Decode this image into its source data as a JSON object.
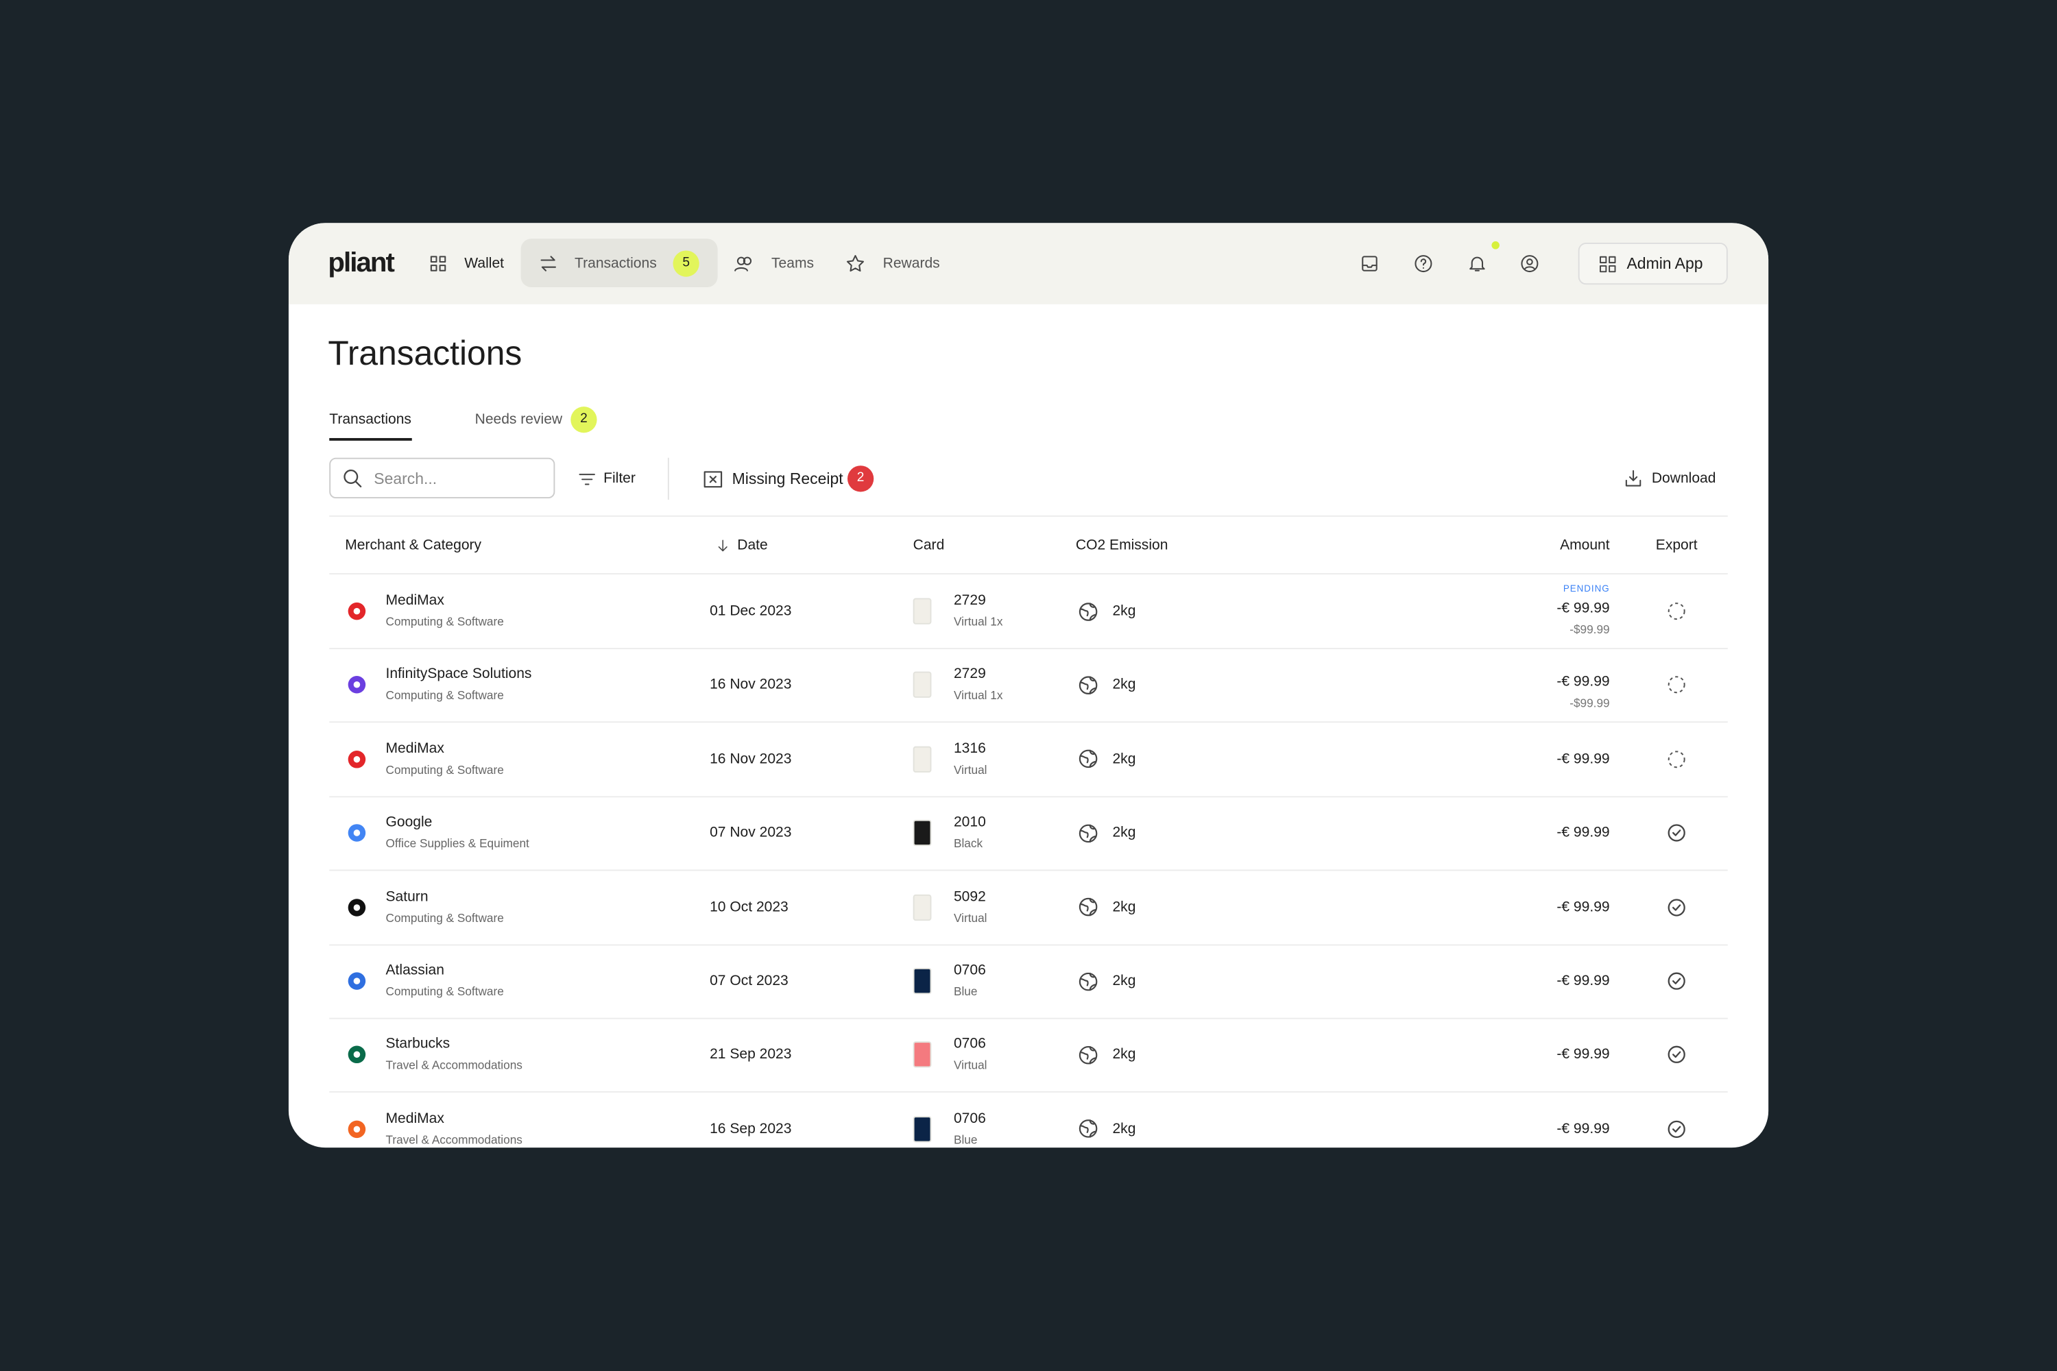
{
  "nav": {
    "logo": "pliant",
    "items": [
      {
        "label": "Wallet",
        "active": false
      },
      {
        "label": "Transactions",
        "badge": 5,
        "active": true
      },
      {
        "label": "Teams",
        "active": false
      },
      {
        "label": "Rewards",
        "active": false
      }
    ],
    "admin_button": "Admin App"
  },
  "page": {
    "title": "Transactions",
    "tabs": [
      {
        "label": "Transactions",
        "active": true
      },
      {
        "label": "Needs review",
        "badge": 2,
        "active": false
      }
    ]
  },
  "toolbar": {
    "search_placeholder": "Search...",
    "filter": "Filter",
    "missing_receipt": "Missing Receipt",
    "missing_receipt_count": 2,
    "download": "Download"
  },
  "table": {
    "columns": [
      "Merchant & Category",
      "Date",
      "Card",
      "CO2 Emission",
      "Amount",
      "Export"
    ],
    "rows": [
      {
        "merchant": "MediMax",
        "category": "Computing & Software",
        "date": "01 Dec 2023",
        "card": "2729",
        "card_type": "Virtual 1x",
        "co2": "2kg",
        "amount": "-€ 99.99",
        "amount_usd": "-$99.99",
        "status": "PENDING",
        "exported": false,
        "logo_color": "#e3262a",
        "card_color": "#f1efe8"
      },
      {
        "merchant": "InfinitySpace Solutions",
        "category": "Computing & Software",
        "date": "16 Nov 2023",
        "card": "2729",
        "card_type": "Virtual 1x",
        "co2": "2kg",
        "amount": "-€ 99.99",
        "amount_usd": "-$99.99",
        "exported": false,
        "logo_color": "#6b3fe0",
        "card_color": "#f1efe8"
      },
      {
        "merchant": "MediMax",
        "category": "Computing & Software",
        "date": "16 Nov 2023",
        "card": "1316",
        "card_type": "Virtual",
        "co2": "2kg",
        "amount": "-€ 99.99",
        "exported": false,
        "logo_color": "#e3262a",
        "card_color": "#f1efe8"
      },
      {
        "merchant": "Google",
        "category": "Office Supplies & Equiment",
        "date": "07 Nov 2023",
        "card": "2010",
        "card_type": "Black",
        "co2": "2kg",
        "amount": "-€ 99.99",
        "exported": true,
        "logo_color": "#4285f4",
        "card_color": "#1a1a1a"
      },
      {
        "merchant": "Saturn",
        "category": "Computing & Software",
        "date": "10 Oct 2023",
        "card": "5092",
        "card_type": "Virtual",
        "co2": "2kg",
        "amount": "-€ 99.99",
        "exported": true,
        "logo_color": "#111111",
        "card_color": "#f1efe8"
      },
      {
        "merchant": "Atlassian",
        "category": "Computing & Software",
        "date": "07 Oct 2023",
        "card": "0706",
        "card_type": "Blue",
        "co2": "2kg",
        "amount": "-€ 99.99",
        "exported": true,
        "logo_color": "#2f6fe0",
        "card_color": "#0b2447"
      },
      {
        "merchant": "Starbucks",
        "category": "Travel & Accommodations",
        "date": "21 Sep 2023",
        "card": "0706",
        "card_type": "Virtual",
        "co2": "2kg",
        "amount": "-€ 99.99",
        "exported": true,
        "logo_color": "#0a6b4a",
        "card_color": "#f47a7f"
      },
      {
        "merchant": "MediMax",
        "category": "Travel & Accommodations",
        "date": "16 Sep 2023",
        "card": "0706",
        "card_type": "Blue",
        "co2": "2kg",
        "amount": "-€ 99.99",
        "exported": true,
        "logo_color": "#f26522",
        "card_color": "#0b2447"
      }
    ]
  }
}
